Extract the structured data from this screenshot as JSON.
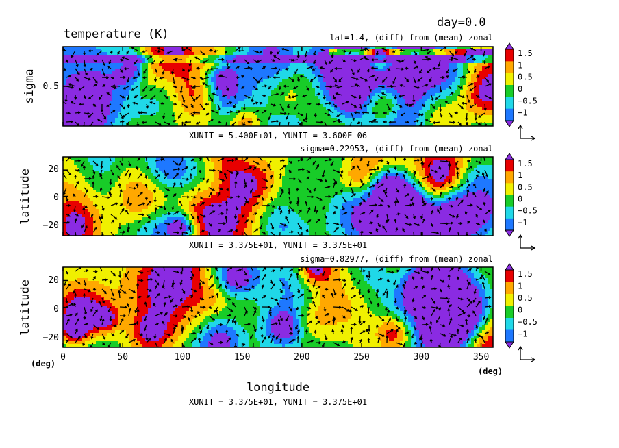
{
  "figure": {
    "day_label": "day=0.0",
    "title": "temperature (K)",
    "x_unit_label": "(deg)",
    "y_unit_label": "(deg)",
    "xlabel": "longitude"
  },
  "colors": {
    "levels": [
      -1.5,
      -1,
      -0.5,
      0,
      0.5,
      1,
      1.5
    ],
    "fill": [
      "#8a2be2",
      "#1e78ff",
      "#20d8e8",
      "#18cc28",
      "#f0f000",
      "#ffa800",
      "#e80000",
      "#8a2be2"
    ],
    "palette_bands": [
      "#1e78ff",
      "#20d8e8",
      "#18cc28",
      "#f0f000",
      "#ffa800",
      "#e80000"
    ]
  },
  "chart_data": [
    {
      "type": "heatmap",
      "subtitle": "lat=1.4, (diff) from (mean) zonal",
      "ylabel": "sigma",
      "xlim": [
        0,
        360
      ],
      "ylim": [
        0,
        1
      ],
      "yticks": [
        0.5
      ],
      "ytick_labels": [
        "0.5"
      ],
      "colorbar_ticks": [
        "1.5",
        "1",
        "0.5",
        "0",
        "−0.5",
        "−1"
      ],
      "unit_note": "XUNIT = 5.400E+01, YUNIT = 3.600E-06",
      "grid": false
    },
    {
      "type": "heatmap",
      "subtitle": "sigma=0.22953, (diff) from (mean) zonal",
      "ylabel": "latitude",
      "xlim": [
        0,
        360
      ],
      "ylim": [
        -30,
        30
      ],
      "yticks": [
        20,
        0,
        -20
      ],
      "ytick_labels": [
        "20",
        "0",
        "−20"
      ],
      "colorbar_ticks": [
        "1.5",
        "1",
        "0.5",
        "0",
        "−0.5",
        "−1"
      ],
      "unit_note": "XUNIT = 3.375E+01, YUNIT = 3.375E+01",
      "grid": false
    },
    {
      "type": "heatmap",
      "subtitle": "sigma=0.82977, (diff) from (mean) zonal",
      "ylabel": "latitude",
      "xlim": [
        0,
        360
      ],
      "ylim": [
        -30,
        30
      ],
      "xticks": [
        0,
        50,
        100,
        150,
        200,
        250,
        300,
        350
      ],
      "xtick_labels": [
        "0",
        "50",
        "100",
        "150",
        "200",
        "250",
        "300",
        "350"
      ],
      "yticks": [
        20,
        0,
        -20
      ],
      "ytick_labels": [
        "20",
        "0",
        "−20"
      ],
      "colorbar_ticks": [
        "1.5",
        "1",
        "0.5",
        "0",
        "−0.5",
        "−1"
      ],
      "unit_note": "XUNIT = 3.375E+01, YUNIT = 3.375E+01",
      "grid": false
    }
  ]
}
